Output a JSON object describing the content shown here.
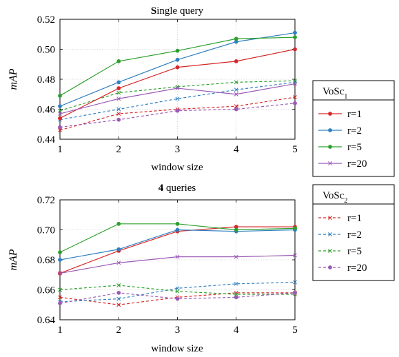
{
  "chart_data": [
    {
      "type": "line",
      "title_bold": "S",
      "title_rest": "ingle query",
      "xlabel": "window size",
      "ylabel": "mAP",
      "x": [
        1,
        2,
        3,
        4,
        5
      ],
      "xlim": [
        1,
        5
      ],
      "ylim": [
        0.44,
        0.52
      ],
      "yticks": [
        "0.44",
        "0.46",
        "0.48",
        "0.50",
        "0.52"
      ],
      "grid": true,
      "series": [
        {
          "name": "r=1",
          "group": "VoSc_1",
          "style": "solid",
          "marker": "circle",
          "color": "#d62728",
          "values": [
            0.454,
            0.474,
            0.488,
            0.492,
            0.5
          ]
        },
        {
          "name": "r=2",
          "group": "VoSc_1",
          "style": "solid",
          "marker": "circle",
          "color": "#2f7fc1",
          "values": [
            0.462,
            0.478,
            0.493,
            0.505,
            0.511
          ]
        },
        {
          "name": "r=5",
          "group": "VoSc_1",
          "style": "solid",
          "marker": "circle",
          "color": "#2ca02c",
          "values": [
            0.469,
            0.492,
            0.499,
            0.507,
            0.508
          ]
        },
        {
          "name": "r=20",
          "group": "VoSc_1",
          "style": "solid",
          "marker": "cross",
          "color": "#9b59b6",
          "values": [
            0.457,
            0.467,
            0.474,
            0.47,
            0.477
          ]
        },
        {
          "name": "r=1",
          "group": "VoSc_2",
          "style": "dashed",
          "marker": "cross",
          "color": "#d62728",
          "values": [
            0.446,
            0.457,
            0.46,
            0.462,
            0.468
          ]
        },
        {
          "name": "r=2",
          "group": "VoSc_2",
          "style": "dashed",
          "marker": "cross",
          "color": "#2f7fc1",
          "values": [
            0.453,
            0.46,
            0.467,
            0.473,
            0.478
          ]
        },
        {
          "name": "r=5",
          "group": "VoSc_2",
          "style": "dashed",
          "marker": "cross",
          "color": "#2ca02c",
          "values": [
            0.459,
            0.471,
            0.475,
            0.478,
            0.479
          ]
        },
        {
          "name": "r=20",
          "group": "VoSc_2",
          "style": "dashed",
          "marker": "circle",
          "color": "#9b59b6",
          "values": [
            0.448,
            0.453,
            0.459,
            0.46,
            0.464
          ]
        }
      ]
    },
    {
      "type": "line",
      "title_bold": "4",
      "title_rest": " queries",
      "xlabel": "window size",
      "ylabel": "mAP",
      "x": [
        1,
        2,
        3,
        4,
        5
      ],
      "xlim": [
        1,
        5
      ],
      "ylim": [
        0.64,
        0.72
      ],
      "yticks": [
        "0.64",
        "0.66",
        "0.68",
        "0.70",
        "0.72"
      ],
      "grid": true,
      "series": [
        {
          "name": "r=1",
          "group": "VoSc_1",
          "style": "solid",
          "marker": "circle",
          "color": "#d62728",
          "values": [
            0.671,
            0.686,
            0.699,
            0.702,
            0.702
          ]
        },
        {
          "name": "r=2",
          "group": "VoSc_1",
          "style": "solid",
          "marker": "circle",
          "color": "#2f7fc1",
          "values": [
            0.68,
            0.687,
            0.7,
            0.699,
            0.7
          ]
        },
        {
          "name": "r=5",
          "group": "VoSc_1",
          "style": "solid",
          "marker": "circle",
          "color": "#2ca02c",
          "values": [
            0.685,
            0.704,
            0.704,
            0.7,
            0.701
          ]
        },
        {
          "name": "r=20",
          "group": "VoSc_1",
          "style": "solid",
          "marker": "cross",
          "color": "#9b59b6",
          "values": [
            0.671,
            0.678,
            0.682,
            0.682,
            0.683
          ]
        },
        {
          "name": "r=1",
          "group": "VoSc_2",
          "style": "dashed",
          "marker": "cross",
          "color": "#d62728",
          "values": [
            0.655,
            0.65,
            0.655,
            0.658,
            0.658
          ]
        },
        {
          "name": "r=2",
          "group": "VoSc_2",
          "style": "dashed",
          "marker": "cross",
          "color": "#2f7fc1",
          "values": [
            0.652,
            0.654,
            0.661,
            0.664,
            0.665
          ]
        },
        {
          "name": "r=5",
          "group": "VoSc_2",
          "style": "dashed",
          "marker": "cross",
          "color": "#2ca02c",
          "values": [
            0.66,
            0.663,
            0.659,
            0.657,
            0.657
          ]
        },
        {
          "name": "r=20",
          "group": "VoSc_2",
          "style": "dashed",
          "marker": "circle",
          "color": "#9b59b6",
          "values": [
            0.651,
            0.658,
            0.654,
            0.655,
            0.658
          ]
        }
      ]
    }
  ],
  "legends": [
    {
      "title_main": "VoSc",
      "title_sub": "1",
      "entries": [
        {
          "label": "r=1",
          "color": "#d62728",
          "style": "solid",
          "marker": "circle"
        },
        {
          "label": "r=2",
          "color": "#2f7fc1",
          "style": "solid",
          "marker": "circle"
        },
        {
          "label": "r=5",
          "color": "#2ca02c",
          "style": "solid",
          "marker": "circle"
        },
        {
          "label": "r=20",
          "color": "#9b59b6",
          "style": "solid",
          "marker": "cross"
        }
      ]
    },
    {
      "title_main": "VoSc",
      "title_sub": "2",
      "entries": [
        {
          "label": "r=1",
          "color": "#d62728",
          "style": "dashed",
          "marker": "cross"
        },
        {
          "label": "r=2",
          "color": "#2f7fc1",
          "style": "dashed",
          "marker": "cross"
        },
        {
          "label": "r=5",
          "color": "#2ca02c",
          "style": "dashed",
          "marker": "cross"
        },
        {
          "label": "r=20",
          "color": "#9b59b6",
          "style": "dashed",
          "marker": "circle"
        }
      ]
    }
  ]
}
